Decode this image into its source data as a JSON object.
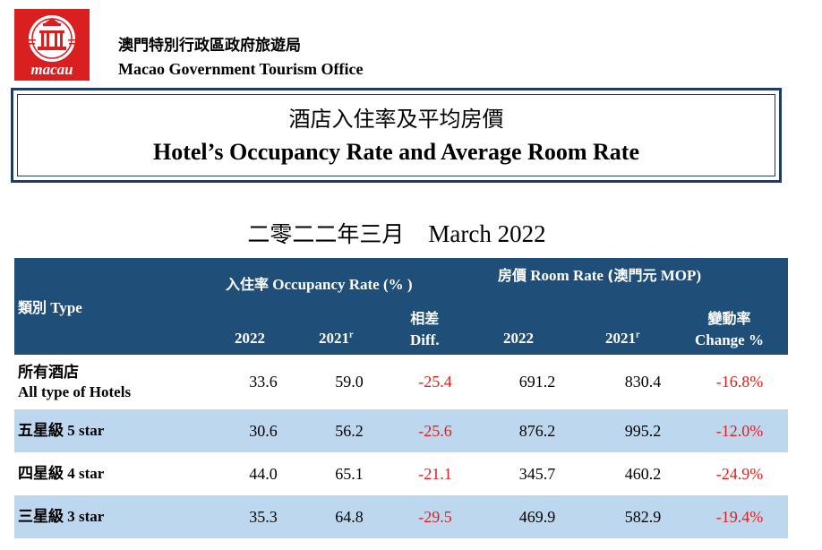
{
  "header": {
    "logo_text": "macau",
    "org_zh": "澳門特別行政區政府旅遊局",
    "org_en": "Macao Government Tourism Office"
  },
  "title": {
    "zh": "酒店入住率及平均房價",
    "en": "Hotel’s Occupancy Rate and Average Room Rate"
  },
  "period": {
    "zh": "二零二二年三月",
    "en": "March 2022"
  },
  "table": {
    "type_zh": "類別",
    "type_en": "Type",
    "occ_zh": "入住率",
    "occ_en": "Occupancy Rate (% )",
    "rate_zh": "房價",
    "rate_en": "Room Rate",
    "rate_unit_zh": "(澳門元",
    "rate_unit_en": "MOP)",
    "col_2022": "2022",
    "col_2021": "2021",
    "col_2021_sup": "r",
    "diff_zh": "相差",
    "diff_en": "Diff.",
    "change_zh": "變動率",
    "change_en": "Change %",
    "rows": [
      {
        "label_zh": "所有酒店",
        "label_en": "All type of Hotels",
        "occ_2022": "33.6",
        "occ_2021": "59.0",
        "diff": "-25.4",
        "rate_2022": "691.2",
        "rate_2021": "830.4",
        "change": "-16.8%"
      },
      {
        "label_zh": "五星級",
        "label_en": "5 star",
        "occ_2022": "30.6",
        "occ_2021": "56.2",
        "diff": "-25.6",
        "rate_2022": "876.2",
        "rate_2021": "995.2",
        "change": "-12.0%"
      },
      {
        "label_zh": "四星級",
        "label_en": "4 star",
        "occ_2022": "44.0",
        "occ_2021": "65.1",
        "diff": "-21.1",
        "rate_2022": "345.7",
        "rate_2021": "460.2",
        "change": "-24.9%"
      },
      {
        "label_zh": "三星級",
        "label_en": "3 star",
        "occ_2022": "35.3",
        "occ_2021": "64.8",
        "diff": "-29.5",
        "rate_2022": "469.9",
        "rate_2021": "582.9",
        "change": "-19.4%"
      }
    ]
  },
  "colors": {
    "header_bg": "#1f4e79",
    "row_shade": "#bdd7ee",
    "negative": "#e0201c",
    "logo_red": "#d91f1f"
  }
}
